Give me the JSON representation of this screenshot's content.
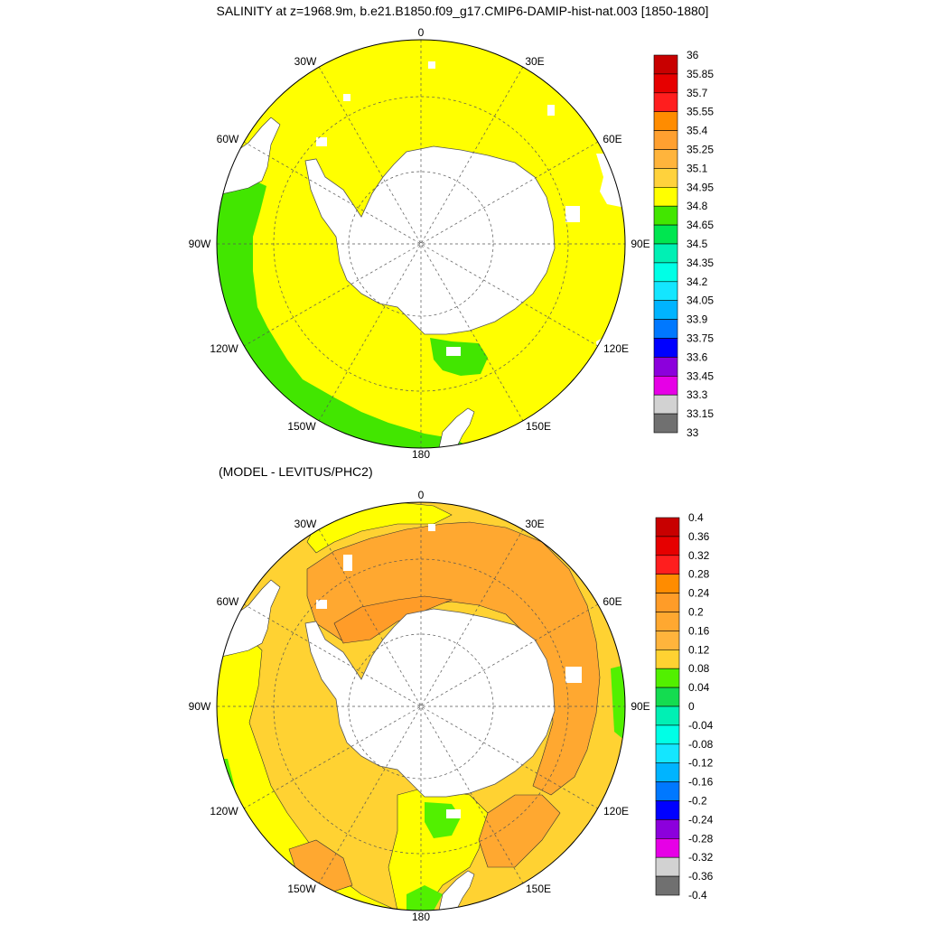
{
  "top_panel": {
    "title": "SALINITY at z=1968.9m, b.e21.B1850.f09_g17.CMIP6-DAMIP-hist-nat.003 [1850-1880]",
    "lon_labels": [
      "0",
      "30E",
      "60E",
      "90E",
      "120E",
      "150E",
      "180",
      "150W",
      "120W",
      "90W",
      "60W",
      "30W"
    ],
    "colorbar": {
      "labels": [
        "36",
        "35.85",
        "35.7",
        "35.55",
        "35.4",
        "35.25",
        "35.1",
        "34.95",
        "34.8",
        "34.65",
        "34.5",
        "34.35",
        "34.2",
        "34.05",
        "33.9",
        "33.75",
        "33.6",
        "33.45",
        "33.3",
        "33.15",
        "33"
      ],
      "colors": [
        "#c80000",
        "#e60000",
        "#ff1e1e",
        "#ff8c00",
        "#ffa030",
        "#ffb43c",
        "#ffd23c",
        "#ffff00",
        "#42e600",
        "#00e650",
        "#00f0b4",
        "#00ffe6",
        "#14e6ff",
        "#00b4ff",
        "#0078ff",
        "#0000ff",
        "#8c00dc",
        "#e600e6",
        "#d2d2d2",
        "#707070"
      ]
    }
  },
  "bottom_panel": {
    "title": "(MODEL - LEVITUS/PHC2)",
    "lon_labels": [
      "0",
      "30E",
      "60E",
      "90E",
      "120E",
      "150E",
      "180",
      "150W",
      "120W",
      "90W",
      "60W",
      "30W"
    ],
    "colorbar": {
      "labels": [
        "0.4",
        "0.36",
        "0.32",
        "0.28",
        "0.24",
        "0.2",
        "0.16",
        "0.12",
        "0.08",
        "0.04",
        "0",
        "-0.04",
        "-0.08",
        "-0.12",
        "-0.16",
        "-0.2",
        "-0.24",
        "-0.28",
        "-0.32",
        "-0.36",
        "-0.4"
      ],
      "colors": [
        "#c80000",
        "#e60000",
        "#ff1e1e",
        "#ff8c00",
        "#ff9c28",
        "#ffa830",
        "#ffb43c",
        "#ffd232",
        "#52f000",
        "#14dc50",
        "#00f0b4",
        "#00ffe6",
        "#14e6ff",
        "#00b4ff",
        "#0078ff",
        "#0000ff",
        "#8c00dc",
        "#e600e6",
        "#d2d2d2",
        "#707070"
      ]
    }
  },
  "colors": {
    "land": "#ffffff",
    "top_field": "#ffff00",
    "top_green": "#42e600",
    "bottom_orange": "#ffa830",
    "bottom_dark_orange": "#ff9c28",
    "bottom_yellow": "#ffd232",
    "bottom_lightyellow": "#ffff00",
    "bottom_green": "#52f000"
  }
}
